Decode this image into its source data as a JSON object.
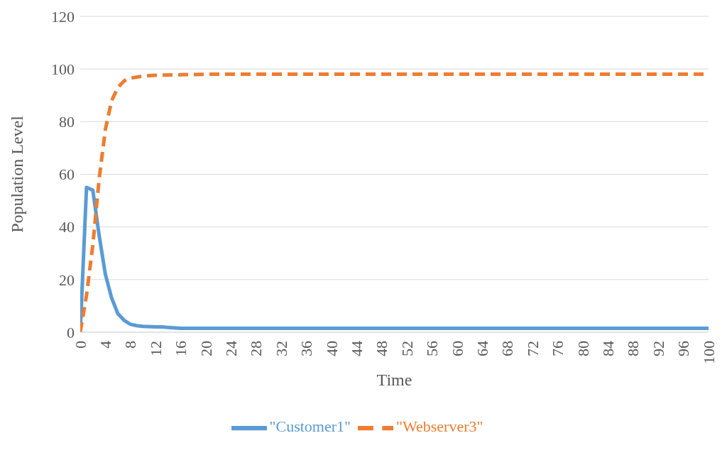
{
  "chart_data": {
    "type": "line",
    "xlabel": "Time",
    "ylabel": "Population Level",
    "xlim": [
      0,
      100
    ],
    "xticks": [
      0,
      4,
      8,
      12,
      16,
      20,
      24,
      28,
      32,
      36,
      40,
      44,
      48,
      52,
      56,
      60,
      64,
      68,
      72,
      76,
      80,
      84,
      88,
      92,
      96,
      100
    ],
    "ylim": [
      0,
      120
    ],
    "yticks": [
      0,
      20,
      40,
      60,
      80,
      100,
      120
    ],
    "grid": "y",
    "legend": "bottom",
    "marker": "none",
    "series": [
      {
        "name": "\"Customer1\"",
        "color": "#5b9bd5",
        "line_style": "solid",
        "x": [
          0,
          1,
          2,
          3,
          4,
          5,
          6,
          7,
          8,
          9,
          10,
          12,
          13,
          14,
          16,
          20,
          40,
          60,
          80,
          100
        ],
        "values": [
          0,
          55,
          54,
          37,
          22,
          13,
          7,
          4.5,
          3,
          2.5,
          2.2,
          2,
          2,
          1.8,
          1.5,
          1.5,
          1.5,
          1.5,
          1.5,
          1.5
        ]
      },
      {
        "name": "\"Webserver3\"",
        "color": "#ed7d31",
        "line_style": "dashed",
        "x": [
          0,
          1,
          2,
          3,
          4,
          5,
          6,
          7,
          8,
          10,
          12,
          16,
          20,
          40,
          60,
          80,
          100
        ],
        "values": [
          0,
          14,
          33,
          58,
          77,
          88,
          93,
          95.5,
          96.5,
          97.3,
          97.6,
          97.8,
          98,
          98,
          98,
          98,
          98
        ]
      }
    ]
  }
}
